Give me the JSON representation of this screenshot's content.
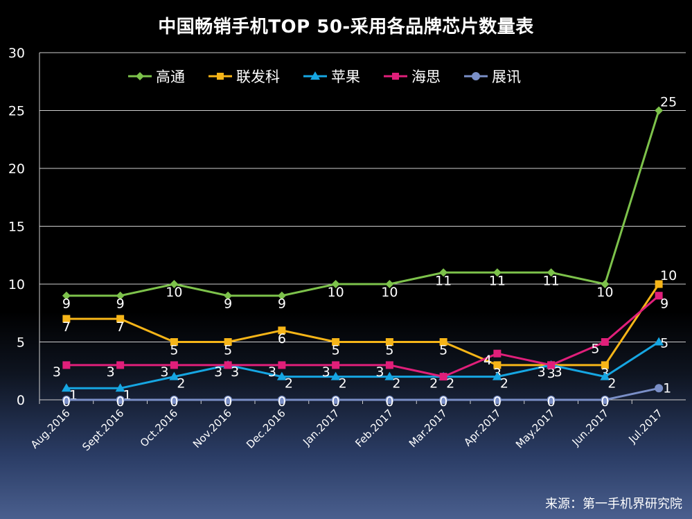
{
  "chart_data": {
    "type": "line",
    "title": "中国畅销手机TOP 50-采用各品牌芯片数量表",
    "categories": [
      "Aug.2016",
      "Sept.2016",
      "Oct.2016",
      "Nov.2016",
      "Dec.2016",
      "Jan.2017",
      "Feb.2017",
      "Mar.2017",
      "Apr.2017",
      "May.2017",
      "Jun.2017",
      "Jul.2017"
    ],
    "ylim": [
      0,
      30
    ],
    "yticks": [
      0,
      5,
      10,
      15,
      20,
      25,
      30
    ],
    "grid": true,
    "legend_position": "top",
    "series": [
      {
        "name": "高通",
        "color": "#7DC24B",
        "marker": "diamond",
        "values": [
          9,
          9,
          10,
          9,
          9,
          10,
          10,
          11,
          11,
          11,
          10,
          25
        ]
      },
      {
        "name": "联发科",
        "color": "#F6B518",
        "marker": "square",
        "values": [
          7,
          7,
          5,
          5,
          6,
          5,
          5,
          5,
          3,
          3,
          3,
          10
        ]
      },
      {
        "name": "苹果",
        "color": "#16A6E2",
        "marker": "triangle",
        "values": [
          1,
          1,
          2,
          3,
          2,
          2,
          2,
          2,
          2,
          3,
          2,
          5
        ]
      },
      {
        "name": "海思",
        "color": "#E01F7A",
        "marker": "square",
        "values": [
          3,
          3,
          3,
          3,
          3,
          3,
          3,
          2,
          4,
          3,
          5,
          9
        ]
      },
      {
        "name": "展讯",
        "color": "#7A8FC7",
        "marker": "circle",
        "values": [
          0,
          0,
          0,
          0,
          0,
          0,
          0,
          0,
          0,
          0,
          0,
          1
        ]
      }
    ]
  },
  "source": "来源：第一手机界研究院"
}
